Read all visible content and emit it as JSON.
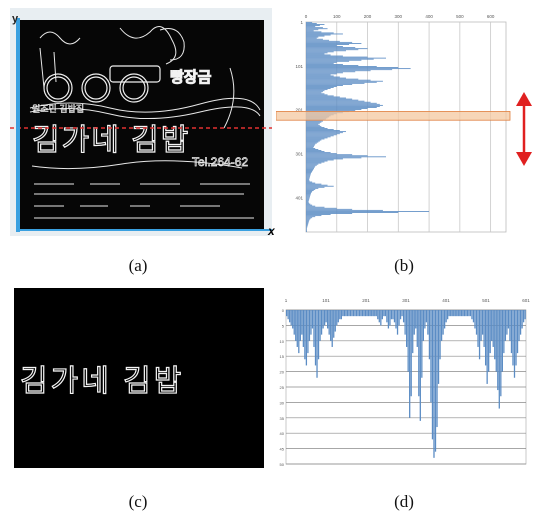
{
  "figure": {
    "captions": [
      "(a)",
      "(b)",
      "(c)",
      "(d)"
    ],
    "panel_a": {
      "y_axis_label": "y",
      "x_axis_label": "x",
      "sign_texts": [
        "빵장금",
        "원조민 김밥집",
        "김가네 김밥",
        "Tel.264-62"
      ],
      "highlight_color": "#e03030",
      "axis_color": "#3aa0e0"
    },
    "panel_c": {
      "text": "김가네 김밥"
    },
    "accent_color": "#e02020",
    "bar_color": "#5b8cc4"
  },
  "chart_data": [
    {
      "panel": "b",
      "type": "bar",
      "orientation": "horizontal",
      "x_tick_labels": [
        "0",
        "100",
        "200",
        "300",
        "400",
        "500",
        "600"
      ],
      "y_tick_labels": [
        "1",
        "101",
        "201",
        "301",
        "401"
      ],
      "xlim": [
        0,
        650
      ],
      "ylim": [
        1,
        480
      ],
      "grid": true,
      "highlight_band": [
        205,
        225
      ],
      "values": [
        20,
        35,
        60,
        45,
        30,
        55,
        70,
        40,
        25,
        50,
        90,
        120,
        80,
        60,
        40,
        35,
        55,
        75,
        110,
        150,
        180,
        140,
        100,
        120,
        160,
        200,
        170,
        130,
        90,
        70,
        60,
        80,
        120,
        200,
        260,
        220,
        180,
        140,
        100,
        90,
        120,
        170,
        230,
        300,
        340,
        280,
        210,
        160,
        120,
        100,
        80,
        90,
        110,
        130,
        170,
        210,
        250,
        230,
        190,
        150,
        120,
        100,
        90,
        80,
        70,
        60,
        55,
        50,
        60,
        70,
        90,
        110,
        130,
        150,
        170,
        190,
        210,
        230,
        240,
        250,
        240,
        230,
        200,
        180,
        160,
        140,
        120,
        100,
        90,
        80,
        75,
        70,
        65,
        60,
        55,
        50,
        45,
        40,
        45,
        50,
        60,
        70,
        90,
        110,
        130,
        120,
        110,
        100,
        90,
        80,
        70,
        60,
        50,
        45,
        40,
        35,
        30,
        28,
        26,
        24,
        30,
        40,
        50,
        60,
        80,
        100,
        150,
        200,
        260,
        180,
        120,
        90,
        70,
        60,
        50,
        40,
        35,
        30,
        28,
        26,
        24,
        22,
        20,
        18,
        16,
        15,
        14,
        13,
        12,
        11,
        10,
        12,
        20,
        30,
        50,
        70,
        90,
        60,
        40,
        30,
        25,
        20,
        18,
        16,
        15,
        14,
        13,
        12,
        11,
        10,
        9,
        8,
        10,
        14,
        20,
        30,
        60,
        100,
        150,
        250,
        400,
        300,
        150,
        80,
        50,
        30,
        20,
        15,
        12,
        10,
        9,
        8,
        7,
        6,
        5,
        4,
        3,
        3,
        3,
        3
      ]
    },
    {
      "panel": "d",
      "type": "bar",
      "orientation": "vertical",
      "inverted": true,
      "grid": true,
      "x_tick_labels": [
        "1",
        "101",
        "201",
        "301",
        "401",
        "501",
        "601"
      ],
      "y_tick_labels": [
        "0",
        "5",
        "10",
        "15",
        "20",
        "25",
        "30",
        "35",
        "40",
        "45",
        "50"
      ],
      "ylim": [
        0,
        50
      ],
      "values": [
        2,
        3,
        4,
        5,
        6,
        8,
        10,
        12,
        14,
        10,
        8,
        12,
        16,
        18,
        14,
        10,
        8,
        6,
        12,
        18,
        22,
        16,
        10,
        8,
        6,
        5,
        4,
        6,
        8,
        10,
        12,
        9,
        7,
        5,
        4,
        3,
        3,
        2,
        2,
        2,
        2,
        2,
        2,
        2,
        2,
        2,
        2,
        2,
        2,
        2,
        2,
        2,
        2,
        2,
        2,
        2,
        2,
        2,
        2,
        2,
        3,
        4,
        5,
        3,
        2,
        2,
        4,
        6,
        5,
        3,
        3,
        4,
        6,
        8,
        5,
        3,
        2,
        4,
        8,
        12,
        20,
        35,
        28,
        14,
        8,
        6,
        12,
        28,
        36,
        22,
        10,
        6,
        4,
        8,
        16,
        30,
        42,
        48,
        46,
        38,
        24,
        16,
        10,
        8,
        6,
        4,
        3,
        2,
        2,
        2,
        2,
        2,
        2,
        2,
        2,
        2,
        2,
        2,
        2,
        2,
        2,
        2,
        3,
        4,
        6,
        8,
        12,
        16,
        10,
        8,
        12,
        18,
        24,
        20,
        14,
        10,
        12,
        16,
        20,
        26,
        32,
        28,
        20,
        14,
        10,
        8,
        6,
        10,
        14,
        18,
        22,
        18,
        14,
        10,
        8,
        6,
        4,
        3
      ]
    }
  ]
}
